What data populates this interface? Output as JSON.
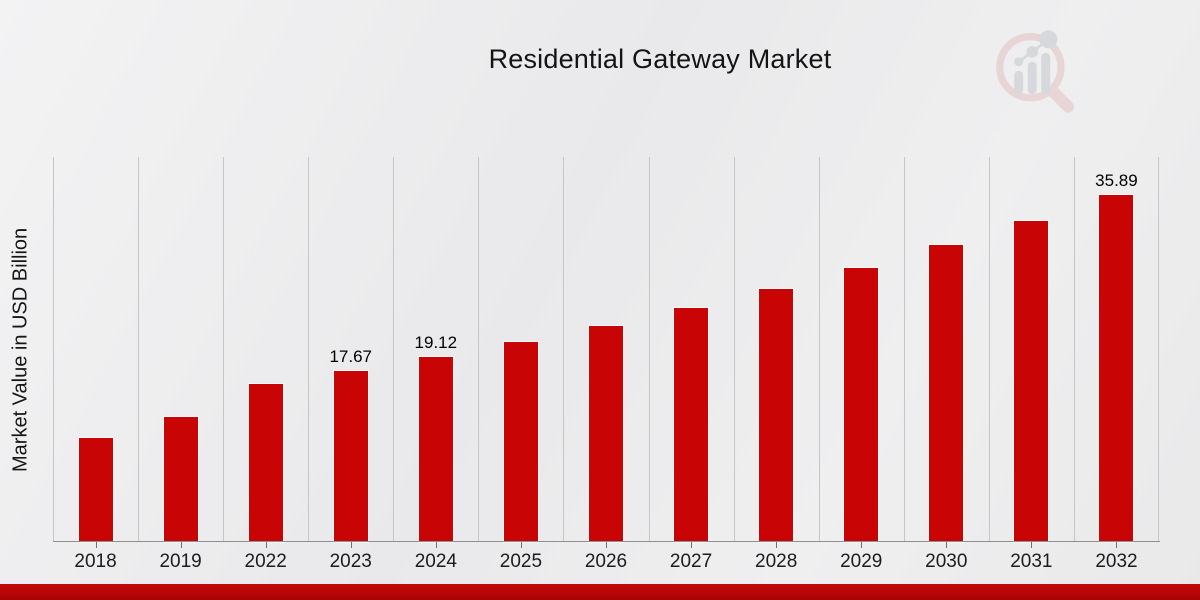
{
  "title": "Residential Gateway Market",
  "chart_data": {
    "type": "bar",
    "title": "Residential Gateway Market",
    "xlabel": "",
    "ylabel": "Market Value in USD Billion",
    "categories": [
      "2018",
      "2019",
      "2022",
      "2023",
      "2024",
      "2025",
      "2026",
      "2027",
      "2028",
      "2029",
      "2030",
      "2031",
      "2032"
    ],
    "values": [
      10.8,
      12.9,
      16.33,
      17.67,
      19.12,
      20.69,
      22.38,
      24.21,
      26.2,
      28.34,
      30.66,
      33.17,
      35.89
    ],
    "data_labels": [
      null,
      null,
      null,
      "17.67",
      "19.12",
      null,
      null,
      null,
      null,
      null,
      null,
      null,
      "35.89"
    ],
    "ylim": [
      0,
      39.8
    ],
    "grid": "vertical-only",
    "legend": "none",
    "bar_color": "#c90404"
  },
  "icons": {
    "watermark": "magnifier-bar-chart-logo"
  },
  "colors": {
    "bar": "#c90404",
    "footer_accent": "#b30606",
    "background": "#ececee",
    "gridline": "#c6c6c8"
  }
}
